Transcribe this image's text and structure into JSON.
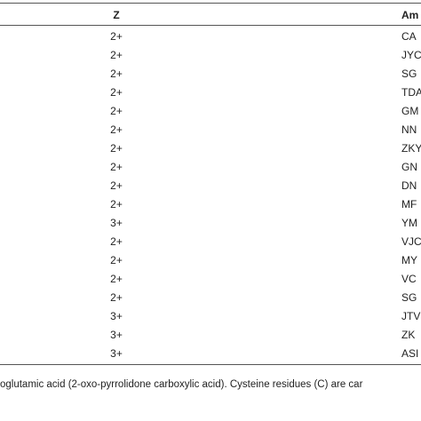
{
  "table": {
    "header": [
      "Z",
      "Am"
    ],
    "rows": [
      [
        "2+",
        "CA"
      ],
      [
        "2+",
        "JYC"
      ],
      [
        "2+",
        "SG"
      ],
      [
        "2+",
        "TDA"
      ],
      [
        "2+",
        "GM"
      ],
      [
        "2+",
        "NN"
      ],
      [
        "2+",
        "ZKY"
      ],
      [
        "2+",
        "GN"
      ],
      [
        "2+",
        "DN"
      ],
      [
        "2+",
        "MF"
      ],
      [
        "3+",
        "YM"
      ],
      [
        "2+",
        "VJC"
      ],
      [
        "2+",
        "MY"
      ],
      [
        "2+",
        "VC"
      ],
      [
        "2+",
        "SG"
      ],
      [
        "3+",
        "JTV"
      ],
      [
        "3+",
        "ZK"
      ],
      [
        "3+",
        "ASI"
      ]
    ]
  },
  "footnote": "oglutamic acid (2-oxo-pyrrolidone carboxylic acid). Cysteine residues (C) are car"
}
